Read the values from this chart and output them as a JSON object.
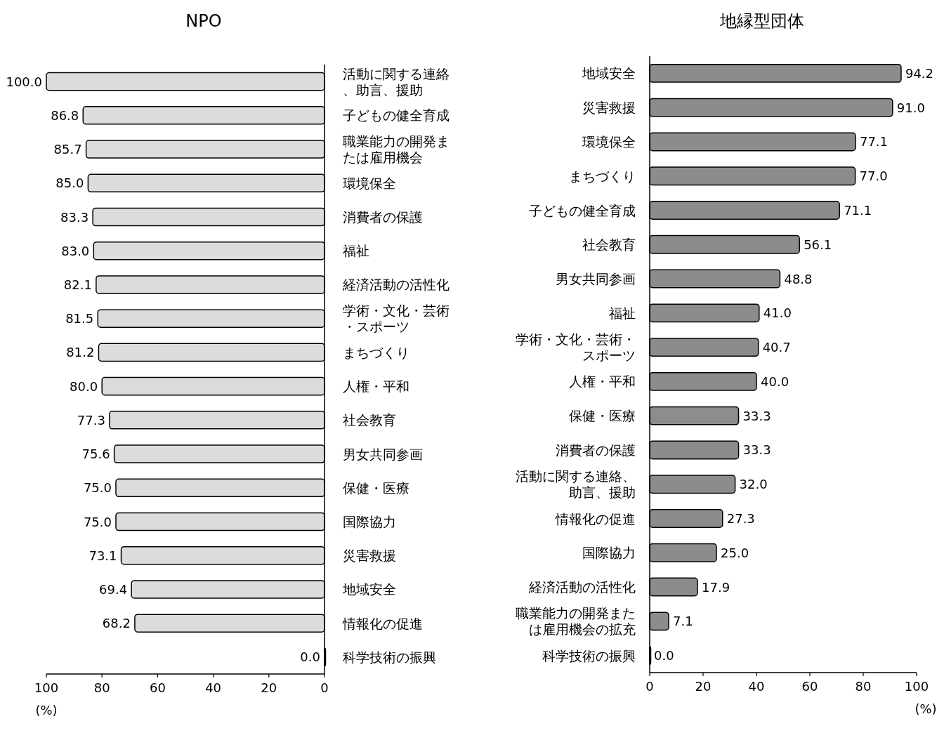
{
  "chart_data": [
    {
      "type": "bar",
      "orientation": "horizontal",
      "title": "NPO",
      "xlabel": "(%)",
      "color": "#dcdcdc",
      "categories": [
        "活動に関する連絡、助言、援助",
        "子どもの健全育成",
        "職業能力の開発または雇用機会",
        "環境保全",
        "消費者の保護",
        "福祉",
        "経済活動の活性化",
        "学術・文化・芸術・スポーツ",
        "まちづくり",
        "人権・平和",
        "社会教育",
        "男女共同参画",
        "保健・医療",
        "国際協力",
        "災害救援",
        "地域安全",
        "情報化の促進",
        "科学技術の振興"
      ],
      "values": [
        100.0,
        86.8,
        85.7,
        85.0,
        83.3,
        83.0,
        82.1,
        81.5,
        81.2,
        80.0,
        77.3,
        75.6,
        75.0,
        75.0,
        73.1,
        69.4,
        68.2,
        0.0
      ],
      "value_labels": [
        "100.0",
        "86.8",
        "85.7",
        "85.0",
        "83.3",
        "83.0",
        "82.1",
        "81.5",
        "81.2",
        "80.0",
        "77.3",
        "75.6",
        "75.0",
        "75.0",
        "73.1",
        "69.4",
        "68.2",
        "0.0"
      ],
      "xlim": [
        100,
        0
      ],
      "xticks": [
        100,
        80,
        60,
        40,
        20,
        0
      ]
    },
    {
      "type": "bar",
      "orientation": "horizontal",
      "title": "地縁型団体",
      "xlabel": "(%)",
      "color": "#8c8c8c",
      "categories": [
        "地域安全",
        "災害救援",
        "環境保全",
        "まちづくり",
        "子どもの健全育成",
        "社会教育",
        "男女共同参画",
        "福祉",
        "学術・文化・芸術・スポーツ",
        "人権・平和",
        "保健・医療",
        "消費者の保護",
        "活動に関する連絡、助言、援助",
        "情報化の促進",
        "国際協力",
        "経済活動の活性化",
        "職業能力の開発または雇用機会の拡充",
        "科学技術の振興"
      ],
      "values": [
        94.2,
        91.0,
        77.1,
        77.0,
        71.1,
        56.1,
        48.8,
        41.0,
        40.7,
        40.0,
        33.3,
        33.3,
        32.0,
        27.3,
        25.0,
        17.9,
        7.1,
        0.0
      ],
      "value_labels": [
        "94.2",
        "91.0",
        "77.1",
        "77.0",
        "71.1",
        "56.1",
        "48.8",
        "41.0",
        "40.7",
        "40.0",
        "33.3",
        "33.3",
        "32.0",
        "27.3",
        "25.0",
        "17.9",
        "7.1",
        "0.0"
      ],
      "xlim": [
        0,
        100
      ],
      "xticks": [
        0,
        20,
        40,
        60,
        80,
        100
      ]
    }
  ]
}
